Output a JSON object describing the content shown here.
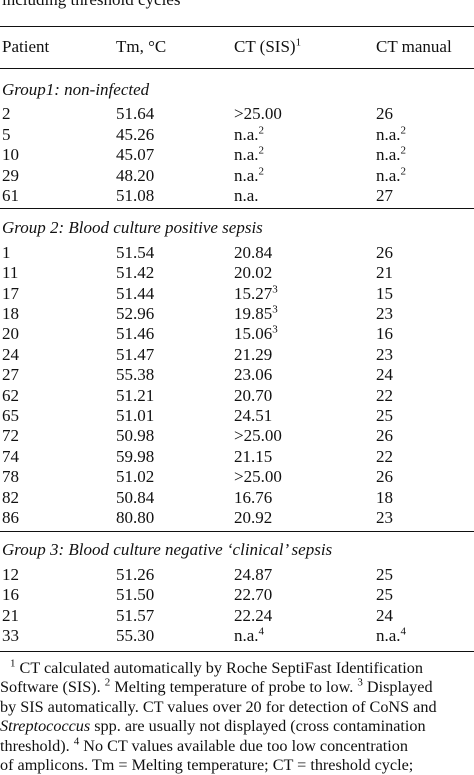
{
  "caption": "including threshold cycles",
  "table": {
    "headers": [
      "Patient",
      "Tm, °C",
      "CT (SIS)",
      "CT manual"
    ],
    "header_ct_sis_sup": "1",
    "groups": [
      {
        "label": "Group1: non-infected",
        "rows": [
          {
            "patient": "2",
            "tm": "51.64",
            "ct_sis": ">25.00",
            "ct_sis_sup": "",
            "ct_manual": "26",
            "ct_manual_sup": ""
          },
          {
            "patient": "5",
            "tm": "45.26",
            "ct_sis": "n.a.",
            "ct_sis_sup": "2",
            "ct_manual": "n.a.",
            "ct_manual_sup": "2"
          },
          {
            "patient": "10",
            "tm": "45.07",
            "ct_sis": "n.a.",
            "ct_sis_sup": "2",
            "ct_manual": "n.a.",
            "ct_manual_sup": "2"
          },
          {
            "patient": "29",
            "tm": "48.20",
            "ct_sis": "n.a.",
            "ct_sis_sup": "2",
            "ct_manual": "n.a.",
            "ct_manual_sup": "2"
          },
          {
            "patient": "61",
            "tm": "51.08",
            "ct_sis": "n.a.",
            "ct_sis_sup": "",
            "ct_manual": "27",
            "ct_manual_sup": ""
          }
        ]
      },
      {
        "label": "Group 2: Blood culture positive sepsis",
        "rows": [
          {
            "patient": "1",
            "tm": "51.54",
            "ct_sis": "20.84",
            "ct_sis_sup": "",
            "ct_manual": "26",
            "ct_manual_sup": ""
          },
          {
            "patient": "11",
            "tm": "51.42",
            "ct_sis": "20.02",
            "ct_sis_sup": "",
            "ct_manual": "21",
            "ct_manual_sup": ""
          },
          {
            "patient": "17",
            "tm": "51.44",
            "ct_sis": "15.27",
            "ct_sis_sup": "3",
            "ct_manual": "15",
            "ct_manual_sup": ""
          },
          {
            "patient": "18",
            "tm": "52.96",
            "ct_sis": "19.85",
            "ct_sis_sup": "3",
            "ct_manual": "23",
            "ct_manual_sup": ""
          },
          {
            "patient": "20",
            "tm": "51.46",
            "ct_sis": "15.06",
            "ct_sis_sup": "3",
            "ct_manual": "16",
            "ct_manual_sup": ""
          },
          {
            "patient": "24",
            "tm": "51.47",
            "ct_sis": "21.29",
            "ct_sis_sup": "",
            "ct_manual": "23",
            "ct_manual_sup": ""
          },
          {
            "patient": "27",
            "tm": "55.38",
            "ct_sis": "23.06",
            "ct_sis_sup": "",
            "ct_manual": "24",
            "ct_manual_sup": ""
          },
          {
            "patient": "62",
            "tm": "51.21",
            "ct_sis": "20.70",
            "ct_sis_sup": "",
            "ct_manual": "22",
            "ct_manual_sup": ""
          },
          {
            "patient": "65",
            "tm": "51.01",
            "ct_sis": "24.51",
            "ct_sis_sup": "",
            "ct_manual": "25",
            "ct_manual_sup": ""
          },
          {
            "patient": "72",
            "tm": "50.98",
            "ct_sis": ">25.00",
            "ct_sis_sup": "",
            "ct_manual": "26",
            "ct_manual_sup": ""
          },
          {
            "patient": "74",
            "tm": "59.98",
            "ct_sis": "21.15",
            "ct_sis_sup": "",
            "ct_manual": "22",
            "ct_manual_sup": ""
          },
          {
            "patient": "78",
            "tm": "51.02",
            "ct_sis": ">25.00",
            "ct_sis_sup": "",
            "ct_manual": "26",
            "ct_manual_sup": ""
          },
          {
            "patient": "82",
            "tm": "50.84",
            "ct_sis": "16.76",
            "ct_sis_sup": "",
            "ct_manual": "18",
            "ct_manual_sup": ""
          },
          {
            "patient": "86",
            "tm": "80.80",
            "ct_sis": "20.92",
            "ct_sis_sup": "",
            "ct_manual": "23",
            "ct_manual_sup": ""
          }
        ]
      },
      {
        "label": "Group 3: Blood culture negative ‘clinical’ sepsis",
        "rows": [
          {
            "patient": "12",
            "tm": "51.26",
            "ct_sis": "24.87",
            "ct_sis_sup": "",
            "ct_manual": "25",
            "ct_manual_sup": ""
          },
          {
            "patient": "16",
            "tm": "51.50",
            "ct_sis": "22.70",
            "ct_sis_sup": "",
            "ct_manual": "25",
            "ct_manual_sup": ""
          },
          {
            "patient": "21",
            "tm": "51.57",
            "ct_sis": "22.24",
            "ct_sis_sup": "",
            "ct_manual": "24",
            "ct_manual_sup": ""
          },
          {
            "patient": "33",
            "tm": "55.30",
            "ct_sis": "n.a.",
            "ct_sis_sup": "4",
            "ct_manual": "n.a.",
            "ct_manual_sup": "4"
          }
        ]
      }
    ]
  },
  "footnotes": {
    "lines": [
      {
        "sup": "1",
        "text": " CT calculated automatically by Roche SeptiFast Identification"
      },
      {
        "text": "Software (SIS). ",
        "sup2": "2",
        "text2": " Melting temperature of probe to low. ",
        "sup3": "3",
        "text3": " Displayed"
      },
      {
        "text": "by SIS automatically. CT values over 20 for detection of CoNS and"
      },
      {
        "italic": "Streptococcus",
        "text": " spp. are usually not displayed (cross contamination"
      },
      {
        "text": "threshold). ",
        "sup4": "4",
        "text4": " No CT values available due too low concentration"
      },
      {
        "text": "of amplicons. Tm = Melting temperature; CT = threshold cycle;"
      },
      {
        "text": "n.a. = not available due to very small amounts of PCR amplicons"
      }
    ]
  }
}
